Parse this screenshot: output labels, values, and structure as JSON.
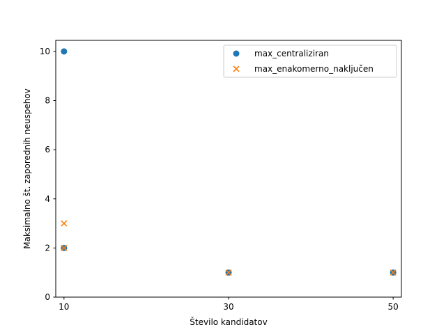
{
  "chart_data": {
    "type": "scatter",
    "title": "",
    "xlabel": "Število kandidatov",
    "ylabel": "Maksimalno št. zaporednih neuspehov",
    "xlim": [
      9,
      51
    ],
    "ylim": [
      0,
      10.45
    ],
    "x_ticks": [
      10,
      30,
      50
    ],
    "y_ticks": [
      0,
      2,
      4,
      6,
      8,
      10
    ],
    "grid": false,
    "legend_position": "top-right",
    "series": [
      {
        "name": "max_centraliziran",
        "marker": "circle",
        "color": "#1f77b4",
        "points": [
          [
            10,
            10
          ],
          [
            10,
            2
          ],
          [
            30,
            1
          ],
          [
            50,
            1
          ]
        ]
      },
      {
        "name": "max_enakomerno_naključen",
        "marker": "x",
        "color": "#ff7f0e",
        "points": [
          [
            10,
            3
          ],
          [
            10,
            2
          ],
          [
            30,
            1
          ],
          [
            50,
            1
          ]
        ]
      }
    ]
  }
}
